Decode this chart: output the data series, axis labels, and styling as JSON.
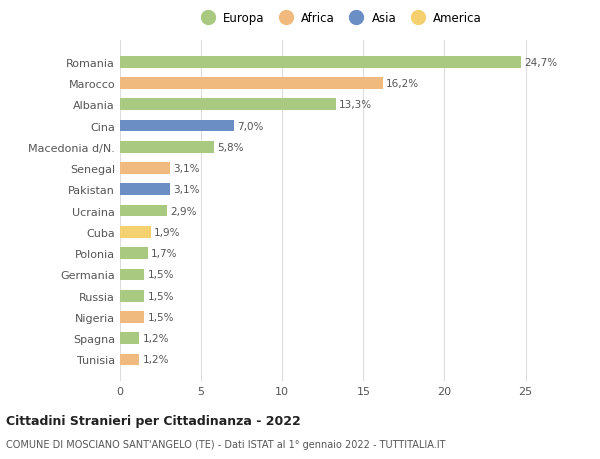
{
  "countries": [
    "Tunisia",
    "Spagna",
    "Nigeria",
    "Russia",
    "Germania",
    "Polonia",
    "Cuba",
    "Ucraina",
    "Pakistan",
    "Senegal",
    "Macedonia d/N.",
    "Cina",
    "Albania",
    "Marocco",
    "Romania"
  ],
  "values": [
    1.2,
    1.2,
    1.5,
    1.5,
    1.5,
    1.7,
    1.9,
    2.9,
    3.1,
    3.1,
    5.8,
    7.0,
    13.3,
    16.2,
    24.7
  ],
  "continents": [
    "Africa",
    "Europa",
    "Africa",
    "Europa",
    "Europa",
    "Europa",
    "America",
    "Europa",
    "Asia",
    "Africa",
    "Europa",
    "Asia",
    "Europa",
    "Africa",
    "Europa"
  ],
  "colors": {
    "Europa": "#a8c97f",
    "Africa": "#f0b97d",
    "Asia": "#6b8fc4",
    "America": "#f5d06e"
  },
  "legend_order": [
    "Europa",
    "Africa",
    "Asia",
    "America"
  ],
  "title": "Cittadini Stranieri per Cittadinanza - 2022",
  "subtitle": "COMUNE DI MOSCIANO SANT'ANGELO (TE) - Dati ISTAT al 1° gennaio 2022 - TUTTITALIA.IT",
  "xlim": [
    0,
    27
  ],
  "xticks": [
    0,
    5,
    10,
    15,
    20,
    25
  ],
  "background_color": "#ffffff",
  "bar_height": 0.55,
  "grid_color": "#dddddd"
}
